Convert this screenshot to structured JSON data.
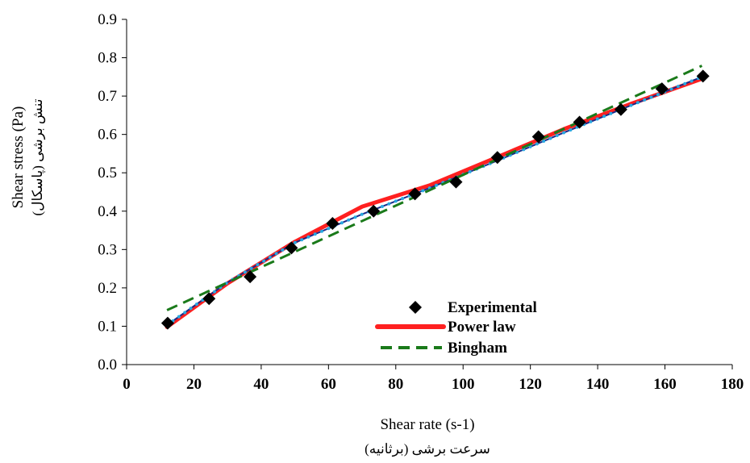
{
  "chart_data": {
    "type": "line",
    "xlabel": "Shear rate (s-1)",
    "xlabel_sub": "سرعت برشی (برثانیه)",
    "ylabel": "Shear stress (Pa)",
    "ylabel_sub": "تنش برشی (پاسکال)",
    "xlim": [
      0,
      180
    ],
    "ylim": [
      0,
      0.9
    ],
    "xticks": [
      "0",
      "20",
      "40",
      "60",
      "80",
      "100",
      "120",
      "140",
      "160",
      "180"
    ],
    "yticks": [
      "0.0",
      "0.1",
      "0.2",
      "0.3",
      "0.4",
      "0.5",
      "0.6",
      "0.7",
      "0.8",
      "0.9"
    ],
    "grid": false,
    "legend_position": "bottom-right",
    "series": [
      {
        "name": "Experimental",
        "style": "marker-diamond",
        "color": "#000000",
        "x": [
          12.2,
          24.5,
          36.7,
          49.0,
          61.2,
          73.4,
          85.7,
          97.9,
          110.2,
          122.4,
          134.6,
          146.9,
          159.1,
          171.3
        ],
        "y": [
          0.108,
          0.172,
          0.229,
          0.304,
          0.368,
          0.4,
          0.445,
          0.476,
          0.54,
          0.594,
          0.632,
          0.665,
          0.719,
          0.752
        ]
      },
      {
        "name": "Power law",
        "style": "line-solid",
        "color": "#ff2020",
        "x": [
          12,
          30,
          50,
          70,
          90,
          110,
          130,
          150,
          171
        ],
        "y": [
          0.098,
          0.212,
          0.32,
          0.412,
          0.467,
          0.54,
          0.614,
          0.68,
          0.745
        ]
      },
      {
        "name": "",
        "style": "line-dotted",
        "color": "#29a8e0",
        "x": [
          12,
          30,
          50,
          70,
          90,
          110,
          130,
          150,
          171
        ],
        "y": [
          0.103,
          0.214,
          0.318,
          0.392,
          0.46,
          0.531,
          0.605,
          0.676,
          0.75
        ]
      },
      {
        "name": "Bingham",
        "style": "line-dashed",
        "color": "#1a7a1a",
        "x": [
          12,
          171
        ],
        "y": [
          0.142,
          0.779
        ]
      }
    ]
  }
}
